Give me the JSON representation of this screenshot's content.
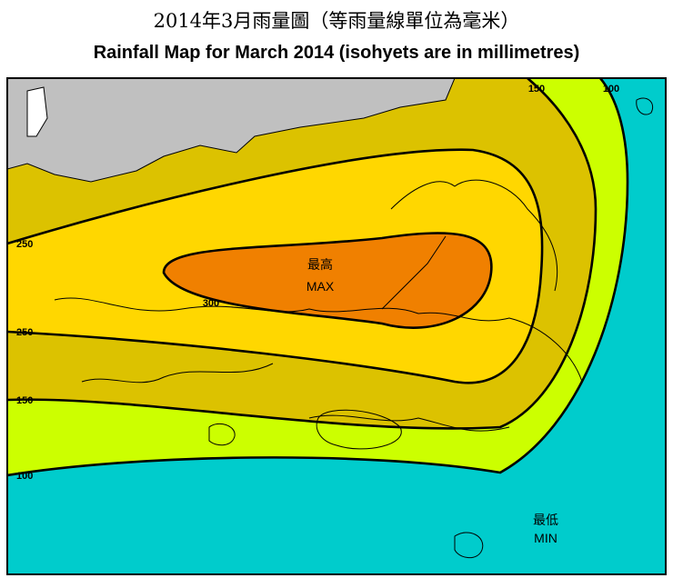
{
  "header": {
    "title_zh": "2014年3月雨量圖（等雨量線單位為毫米）",
    "title_en": "Rainfall Map for March 2014 (isohyets are in millimetres)"
  },
  "map": {
    "isohyet_labels": [
      150,
      100,
      250,
      250,
      150,
      100,
      300
    ],
    "max_label": {
      "zh": "最高",
      "en": "MAX"
    },
    "min_label": {
      "zh": "最低",
      "en": "MIN"
    }
  }
}
